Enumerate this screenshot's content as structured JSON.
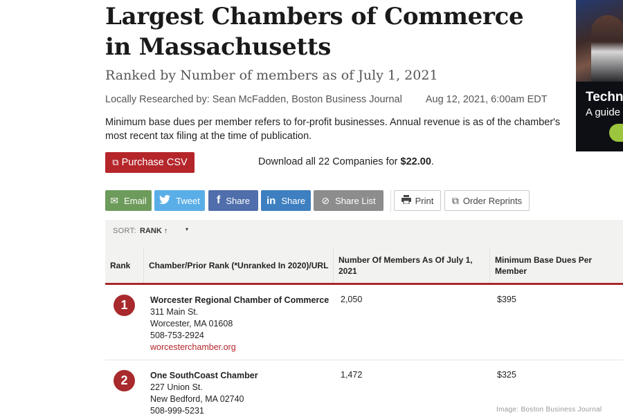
{
  "header": {
    "title": "Largest Chambers of Commerce in Massachusetts",
    "subtitle": "Ranked by Number of members as of July 1, 2021",
    "byline": "Locally Researched by: Sean McFadden, Boston Business Journal",
    "date": "Aug 12, 2021, 6:00am EDT",
    "description": "Minimum base dues per member refers to for-profit businesses. Annual revenue is as of the chamber's most recent tax filing at the time of publication."
  },
  "purchase": {
    "button_label": "Purchase CSV",
    "download_text": "Download all 22 Companies for",
    "price": "$22.00",
    "price_suffix": "."
  },
  "share": {
    "email": "Email",
    "tweet": "Tweet",
    "facebook": "Share",
    "linkedin": "Share",
    "share_list": "Share List",
    "print": "Print",
    "order_reprints": "Order Reprints"
  },
  "sort": {
    "label": "SORT:",
    "value": "RANK ↑",
    "caret": "▾"
  },
  "table": {
    "columns": [
      "Rank",
      "Chamber/Prior Rank (*Unranked In 2020)/URL",
      "Number Of Members As Of July 1, 2021",
      "Minimum Base Dues Per Member"
    ],
    "rows": [
      {
        "rank": "1",
        "name": "Worcester Regional Chamber of Commerce",
        "street": "311 Main St.",
        "city": "Worcester, MA 01608",
        "phone": "508-753-2924",
        "url": "worcesterchamber.org",
        "members": "2,050",
        "dues": "$395"
      },
      {
        "rank": "2",
        "name": "One SouthCoast Chamber",
        "street": "227 Union St.",
        "city": "New Bedford, MA 02740",
        "phone": "508-999-5231",
        "url": "",
        "members": "1,472",
        "dues": "$325"
      }
    ]
  },
  "ad": {
    "title": "Techn",
    "subtitle": "A guide"
  },
  "credit": "Image: Boston Business Journal",
  "colors": {
    "accent_red": "#b5262b",
    "email_green": "#6d9b5b",
    "twitter_blue": "#5aaee8",
    "facebook_blue": "#4f6eab",
    "linkedin_blue": "#3d7fc0",
    "share_list_gray": "#8d8d8d"
  }
}
